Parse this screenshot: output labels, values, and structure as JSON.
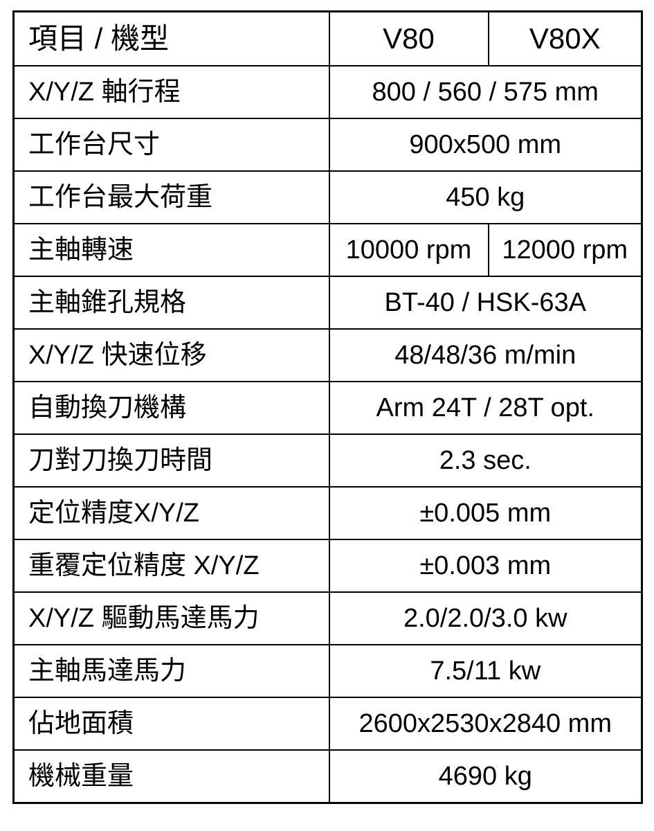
{
  "header": {
    "item": "項目 / 機型",
    "models": [
      "V80",
      "V80X"
    ]
  },
  "rows": [
    {
      "label": "X/Y/Z 軸行程",
      "value": "800 / 560 / 575 mm"
    },
    {
      "label": "工作台尺寸",
      "value": "900x500 mm"
    },
    {
      "label": "工作台最大荷重",
      "value": "450 kg"
    },
    {
      "label": "主軸轉速",
      "values": [
        "10000 rpm",
        "12000 rpm"
      ]
    },
    {
      "label": "主軸錐孔規格",
      "value": "BT-40 / HSK-63A"
    },
    {
      "label": "X/Y/Z 快速位移",
      "value": "48/48/36 m/min"
    },
    {
      "label": "自動換刀機構",
      "value": "Arm 24T / 28T opt."
    },
    {
      "label": "刀對刀換刀時間",
      "value": "2.3 sec."
    },
    {
      "label": "定位精度X/Y/Z",
      "value": "±0.005 mm"
    },
    {
      "label": "重覆定位精度 X/Y/Z",
      "value": "±0.003 mm"
    },
    {
      "label": "X/Y/Z 驅動馬達馬力",
      "value": "2.0/2.0/3.0 kw"
    },
    {
      "label": "主軸馬達馬力",
      "value": "7.5/11 kw"
    },
    {
      "label": "佔地面積",
      "value": "2600x2530x2840 mm"
    },
    {
      "label": "機械重量",
      "value": "4690 kg"
    }
  ]
}
